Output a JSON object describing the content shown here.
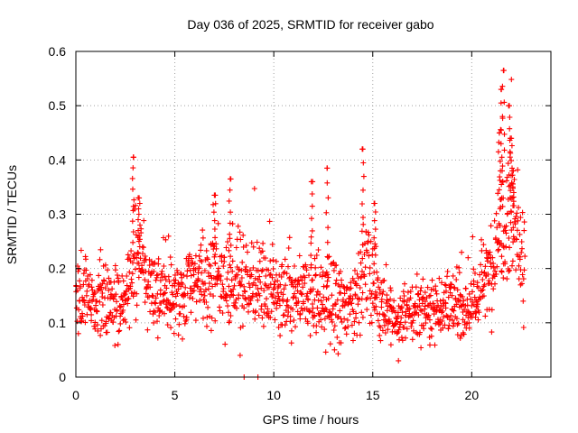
{
  "chart_data": {
    "type": "scatter",
    "title": "Day 036 of 2025, SRMTID for receiver gabo",
    "xlabel": "GPS time / hours",
    "ylabel": "SRMTID / TECUs",
    "xlim": [
      0,
      24
    ],
    "ylim": [
      0,
      0.6
    ],
    "xticks": [
      0,
      5,
      10,
      15,
      20
    ],
    "xtick_labels": [
      "0",
      "5",
      "10",
      "15",
      "20"
    ],
    "yticks": [
      0,
      0.1,
      0.2,
      0.3,
      0.4,
      0.5,
      0.6
    ],
    "ytick_labels": [
      "0",
      "0.1",
      "0.2",
      "0.3",
      "0.4",
      "0.5",
      "0.6"
    ],
    "grid": true,
    "marker": "+",
    "color": "#ff0000",
    "series_profile": [
      {
        "x": 0.0,
        "median": 0.15,
        "spread": 0.06
      },
      {
        "x": 1.0,
        "median": 0.14,
        "spread": 0.06
      },
      {
        "x": 2.0,
        "median": 0.14,
        "spread": 0.06
      },
      {
        "x": 2.5,
        "median": 0.13,
        "spread": 0.05
      },
      {
        "x": 3.0,
        "median": 0.24,
        "spread": 0.09
      },
      {
        "x": 3.5,
        "median": 0.19,
        "spread": 0.06
      },
      {
        "x": 4.0,
        "median": 0.15,
        "spread": 0.06
      },
      {
        "x": 5.0,
        "median": 0.15,
        "spread": 0.06
      },
      {
        "x": 6.0,
        "median": 0.18,
        "spread": 0.07
      },
      {
        "x": 7.0,
        "median": 0.18,
        "spread": 0.07
      },
      {
        "x": 8.0,
        "median": 0.17,
        "spread": 0.07
      },
      {
        "x": 9.0,
        "median": 0.18,
        "spread": 0.07
      },
      {
        "x": 10.0,
        "median": 0.15,
        "spread": 0.07
      },
      {
        "x": 11.0,
        "median": 0.14,
        "spread": 0.07
      },
      {
        "x": 12.0,
        "median": 0.15,
        "spread": 0.08
      },
      {
        "x": 13.0,
        "median": 0.13,
        "spread": 0.07
      },
      {
        "x": 14.0,
        "median": 0.13,
        "spread": 0.06
      },
      {
        "x": 14.6,
        "median": 0.2,
        "spread": 0.08
      },
      {
        "x": 15.0,
        "median": 0.17,
        "spread": 0.07
      },
      {
        "x": 16.0,
        "median": 0.1,
        "spread": 0.04
      },
      {
        "x": 17.0,
        "median": 0.12,
        "spread": 0.05
      },
      {
        "x": 18.0,
        "median": 0.13,
        "spread": 0.05
      },
      {
        "x": 19.0,
        "median": 0.13,
        "spread": 0.05
      },
      {
        "x": 20.0,
        "median": 0.13,
        "spread": 0.05
      },
      {
        "x": 21.0,
        "median": 0.2,
        "spread": 0.07
      },
      {
        "x": 21.5,
        "median": 0.3,
        "spread": 0.12
      },
      {
        "x": 22.0,
        "median": 0.3,
        "spread": 0.12
      },
      {
        "x": 22.7,
        "median": 0.2,
        "spread": 0.07
      }
    ],
    "peaks": [
      {
        "x": 2.9,
        "y": 0.405
      },
      {
        "x": 3.2,
        "y": 0.33
      },
      {
        "x": 7.0,
        "y": 0.335
      },
      {
        "x": 7.8,
        "y": 0.365
      },
      {
        "x": 11.9,
        "y": 0.36
      },
      {
        "x": 12.7,
        "y": 0.385
      },
      {
        "x": 14.5,
        "y": 0.42
      },
      {
        "x": 15.1,
        "y": 0.32
      },
      {
        "x": 21.6,
        "y": 0.565
      },
      {
        "x": 21.5,
        "y": 0.53
      },
      {
        "x": 21.9,
        "y": 0.5
      },
      {
        "x": 22.0,
        "y": 0.44
      },
      {
        "x": 21.4,
        "y": 0.45
      },
      {
        "x": 22.1,
        "y": 0.38
      }
    ],
    "lows": [
      {
        "x": 8.5,
        "y": 0.0
      },
      {
        "x": 9.2,
        "y": 0.0
      },
      {
        "x": 8.3,
        "y": 0.04
      },
      {
        "x": 16.3,
        "y": 0.03
      }
    ],
    "time_range_hours": [
      0,
      22.7
    ],
    "point_count": 1500
  }
}
